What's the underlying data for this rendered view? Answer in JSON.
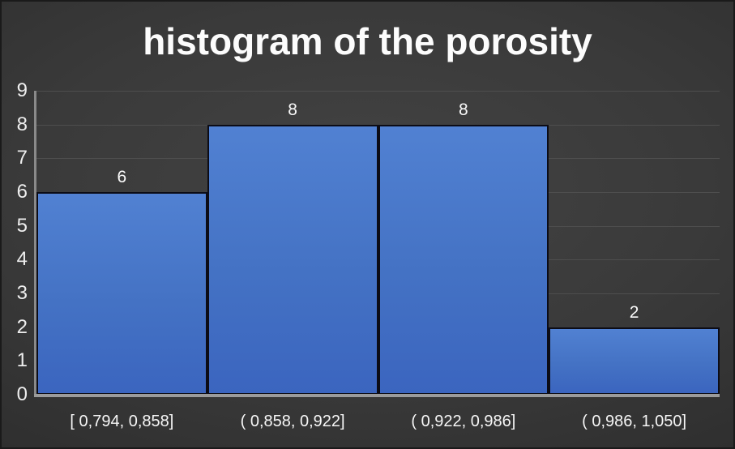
{
  "chart_data": {
    "type": "bar",
    "chart_kind": "histogram",
    "title": "histogram of the porosity",
    "categories": [
      "[ 0,794,  0,858]",
      "( 0,858,  0,922]",
      "( 0,922,  0,986]",
      "( 0,986,  1,050]"
    ],
    "values": [
      6,
      8,
      8,
      2
    ],
    "data_labels": [
      "6",
      "8",
      "8",
      "2"
    ],
    "xlabel": "",
    "ylabel": "",
    "ylim": [
      0,
      9
    ],
    "y_ticks": [
      0,
      1,
      2,
      3,
      4,
      5,
      6,
      7,
      8,
      9
    ],
    "grid": true,
    "legend": "none",
    "colors": {
      "bar_fill": "#4472c4",
      "bar_border": "#0c0c16",
      "gridline": "#4e4e4e",
      "axis_line": "#8a8a8a",
      "baseline": "#9b9b9b",
      "title_text": "#fcfcfc",
      "label_text": "#f6f6f6",
      "background_center": "#434343",
      "background_edge": "#1f1f1f"
    }
  }
}
